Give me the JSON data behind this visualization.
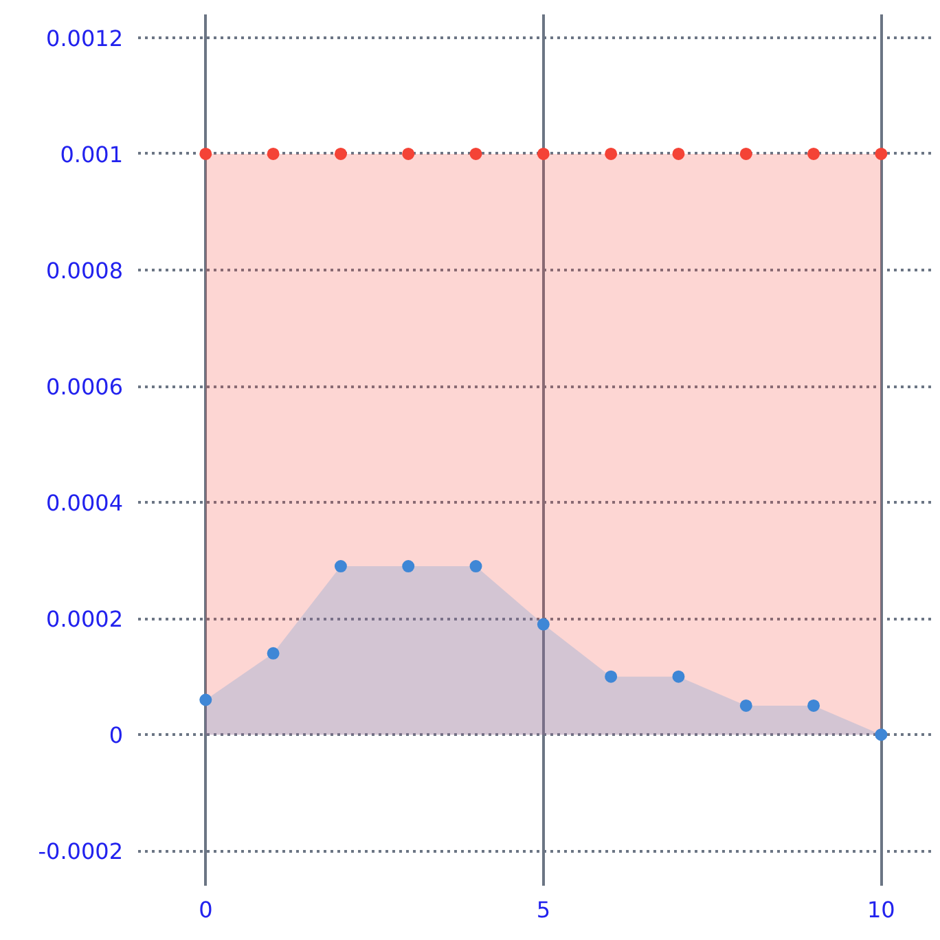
{
  "chart_data": {
    "type": "area",
    "x": [
      0,
      1,
      2,
      3,
      4,
      5,
      6,
      7,
      8,
      9,
      10
    ],
    "series": [
      {
        "color": "#f44336",
        "values": [
          0.001,
          0.001,
          0.001,
          0.001,
          0.001,
          0.001,
          0.001,
          0.001,
          0.001,
          0.001,
          0.001
        ]
      },
      {
        "color": "#3f87d6",
        "values": [
          6e-05,
          0.00014,
          0.00029,
          0.00029,
          0.00029,
          0.00019,
          0.0001,
          0.0001,
          5e-05,
          5e-05,
          0
        ]
      }
    ],
    "xlim": [
      -1,
      10.8
    ],
    "ylim": [
      -0.00026,
      0.00124
    ],
    "xticks": [
      0,
      5,
      10
    ],
    "yticks": [
      {
        "value": -0.0002,
        "label": "-0.0002"
      },
      0,
      {
        "value": 0.0002,
        "label": "0.0002"
      },
      {
        "value": 0.0004,
        "label": "0.0004"
      },
      {
        "value": 0.0006,
        "label": "0.0006"
      },
      {
        "value": 0.0008,
        "label": "0.0008"
      },
      {
        "value": 0.001,
        "label": "0.001"
      },
      {
        "value": 0.0012,
        "label": "0.0012"
      }
    ],
    "grid": true,
    "marker": "circle"
  }
}
